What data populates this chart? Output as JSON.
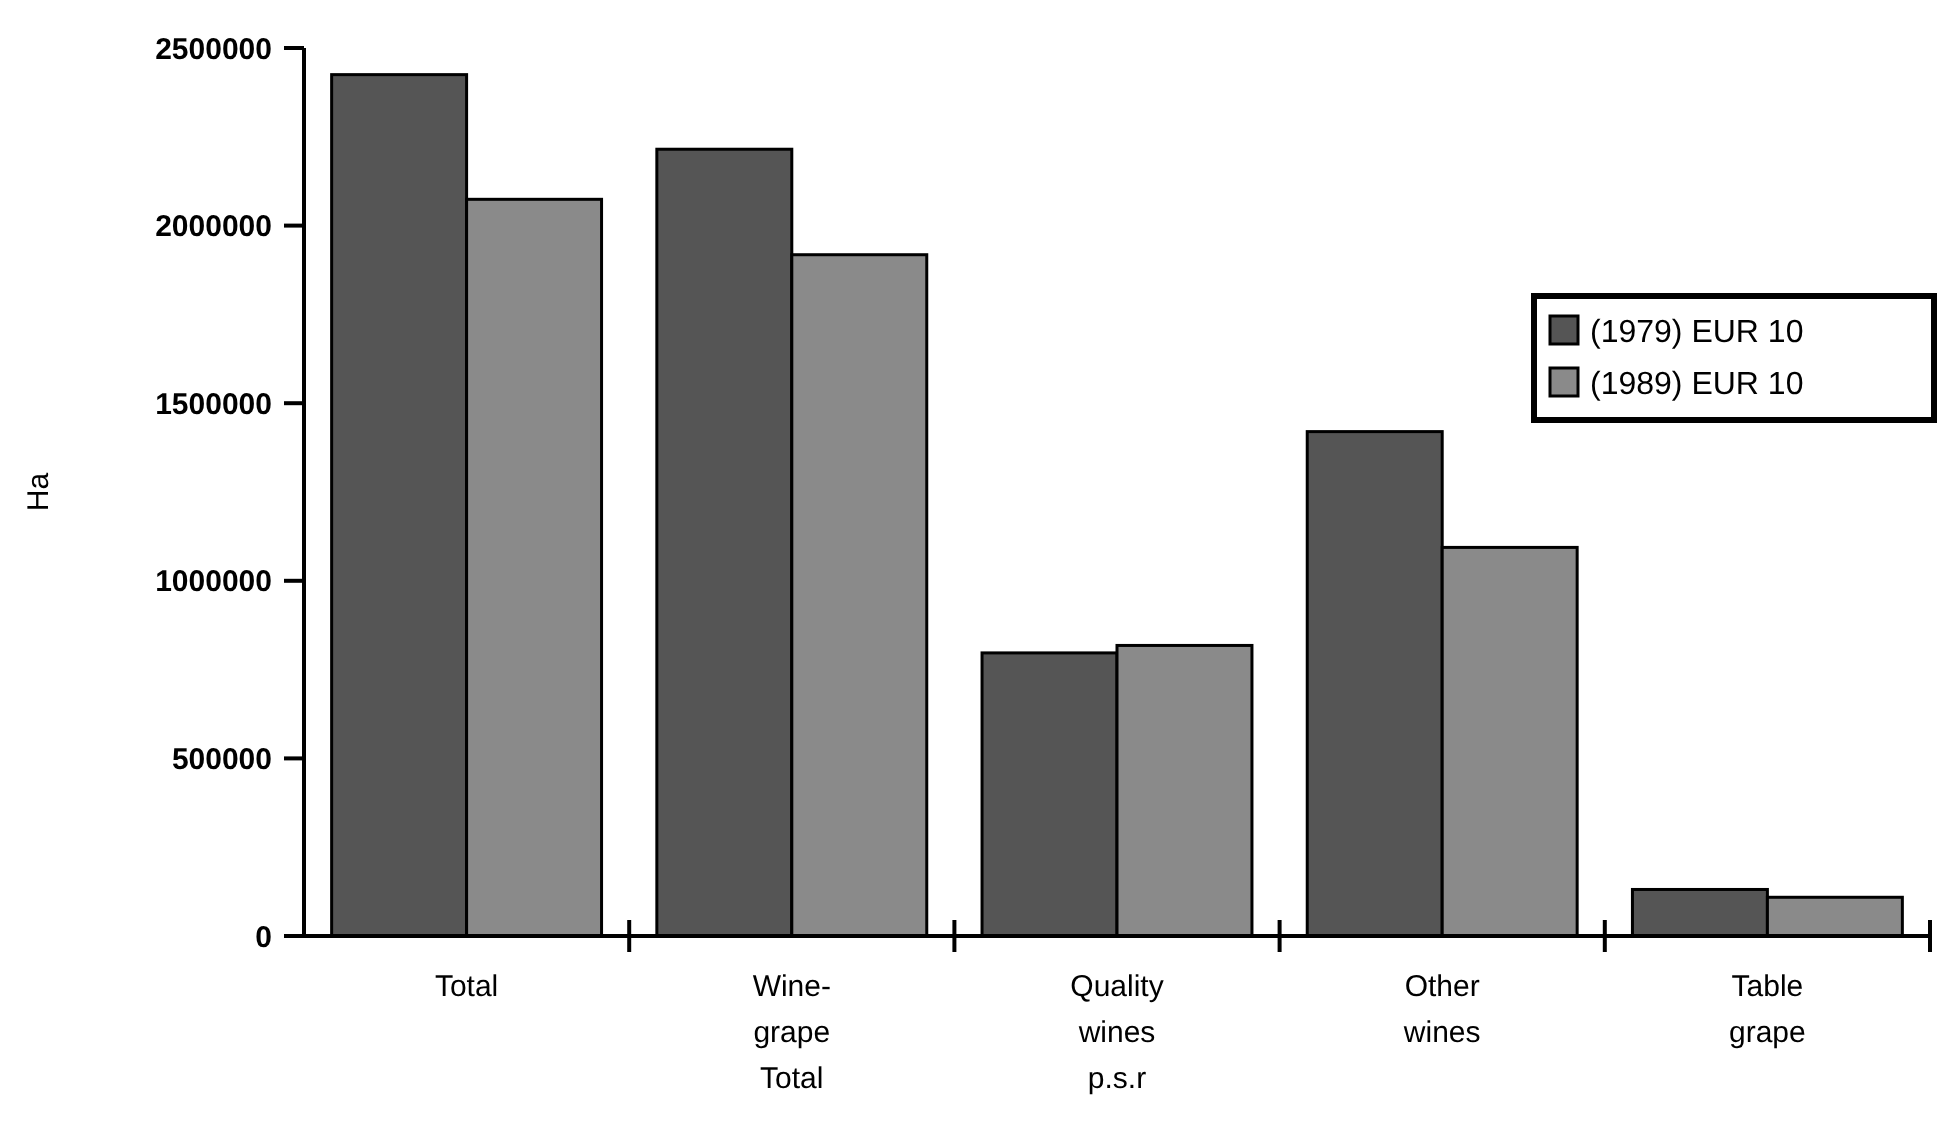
{
  "chart_data": {
    "type": "bar",
    "ylabel": "Ha",
    "categories": [
      "Total",
      "Wine-grape Total",
      "Quality wines p.s.r",
      "Other wines",
      "Table grape"
    ],
    "series": [
      {
        "name": "(1979) EUR 10",
        "color": "#555555",
        "values": [
          2425000,
          2215000,
          797000,
          1420000,
          131000
        ]
      },
      {
        "name": "(1989) EUR 10",
        "color": "#8a8a8a",
        "values": [
          2074000,
          1918000,
          818000,
          1094000,
          109000
        ]
      }
    ],
    "ylim": [
      0,
      2500000
    ],
    "yticks": [
      0,
      500000,
      1000000,
      1500000,
      2000000,
      2500000
    ],
    "grid": false,
    "legend": "right"
  }
}
